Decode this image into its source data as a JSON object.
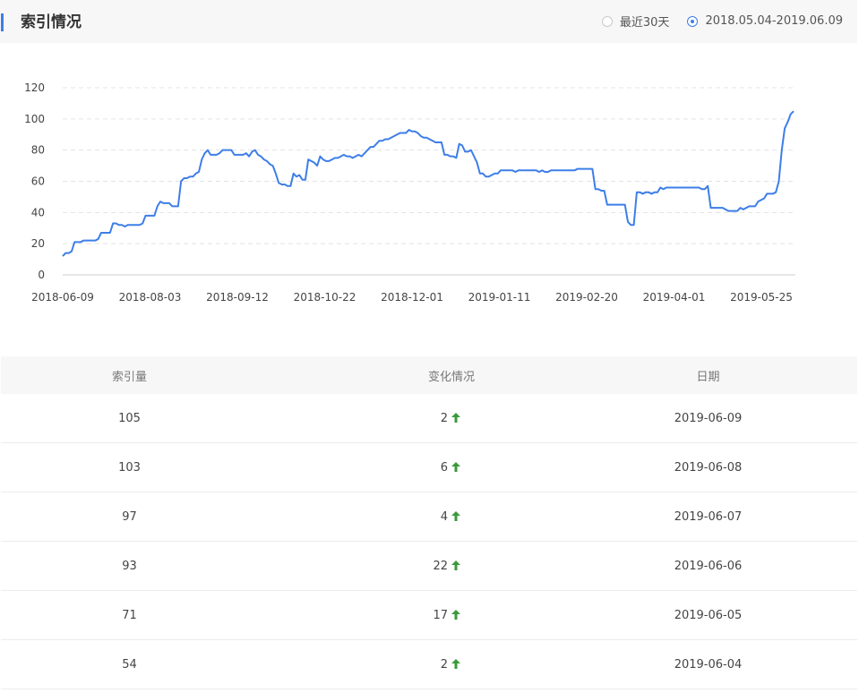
{
  "header": {
    "title": "索引情况"
  },
  "range_options": [
    {
      "label": "最近30天",
      "selected": false
    },
    {
      "label": "2018.05.04-2019.06.09",
      "selected": true
    }
  ],
  "chart_data": {
    "type": "line",
    "ylim": [
      0,
      120
    ],
    "y_ticks": [
      "0",
      "20",
      "40",
      "60",
      "80",
      "100",
      "120"
    ],
    "x_ticks": [
      "2018-06-09",
      "2018-08-03",
      "2018-09-12",
      "2018-10-22",
      "2018-12-01",
      "2019-01-11",
      "2019-02-20",
      "2019-04-01",
      "2019-05-25"
    ],
    "grid": true,
    "color": "#3d7ee8",
    "series": [
      {
        "values": [
          12,
          14,
          14,
          15,
          21,
          21,
          21,
          22,
          22,
          22,
          22,
          22,
          23,
          27,
          27,
          27,
          27,
          33,
          33,
          32,
          32,
          31,
          32,
          32,
          32,
          32,
          32,
          33,
          38,
          38,
          38,
          38,
          44,
          47,
          46,
          46,
          46,
          44,
          44,
          44,
          60,
          62,
          62,
          63,
          63,
          65,
          66,
          74,
          78,
          80,
          77,
          77,
          77,
          78,
          80,
          80,
          80,
          80,
          77,
          77,
          77,
          77,
          78,
          76,
          79,
          80,
          77,
          76,
          74,
          73,
          71,
          70,
          65,
          59,
          58,
          58,
          57,
          57,
          65,
          63,
          64,
          61,
          61,
          74,
          73,
          72,
          70,
          76,
          74,
          73,
          73,
          74,
          75,
          75,
          76,
          77,
          76,
          76,
          75,
          76,
          77,
          76,
          78,
          80,
          82,
          82,
          84,
          86,
          86,
          87,
          87,
          88,
          89,
          90,
          91,
          91,
          91,
          93,
          92,
          92,
          91,
          89,
          88,
          88,
          87,
          86,
          85,
          85,
          85,
          77,
          77,
          76,
          76,
          75,
          84,
          83,
          79,
          79,
          80,
          76,
          72,
          65,
          65,
          63,
          63,
          64,
          65,
          65,
          67,
          67,
          67,
          67,
          67,
          66,
          67,
          67,
          67,
          67,
          67,
          67,
          67,
          66,
          67,
          66,
          66,
          67,
          67,
          67,
          67,
          67,
          67,
          67,
          67,
          67,
          68,
          68,
          68,
          68,
          68,
          68,
          55,
          55,
          54,
          54,
          45,
          45,
          45,
          45,
          45,
          45,
          45,
          34,
          32,
          32,
          53,
          53,
          52,
          53,
          53,
          52,
          53,
          53,
          56,
          55,
          56,
          56,
          56,
          56,
          56,
          56,
          56,
          56,
          56,
          56,
          56,
          56,
          55,
          55,
          57,
          43,
          43,
          43,
          43,
          43,
          42,
          41,
          41,
          41,
          41,
          43,
          42,
          43,
          44,
          44,
          44,
          47,
          48,
          49,
          52,
          52,
          52,
          53,
          60,
          80,
          94,
          98,
          103,
          105
        ]
      }
    ]
  },
  "table": {
    "headers": [
      "索引量",
      "变化情况",
      "日期"
    ],
    "rows": [
      {
        "count": "105",
        "change": "2",
        "date": "2019-06-09"
      },
      {
        "count": "103",
        "change": "6",
        "date": "2019-06-08"
      },
      {
        "count": "97",
        "change": "4",
        "date": "2019-06-07"
      },
      {
        "count": "93",
        "change": "22",
        "date": "2019-06-06"
      },
      {
        "count": "71",
        "change": "17",
        "date": "2019-06-05"
      },
      {
        "count": "54",
        "change": "2",
        "date": "2019-06-04"
      }
    ]
  }
}
